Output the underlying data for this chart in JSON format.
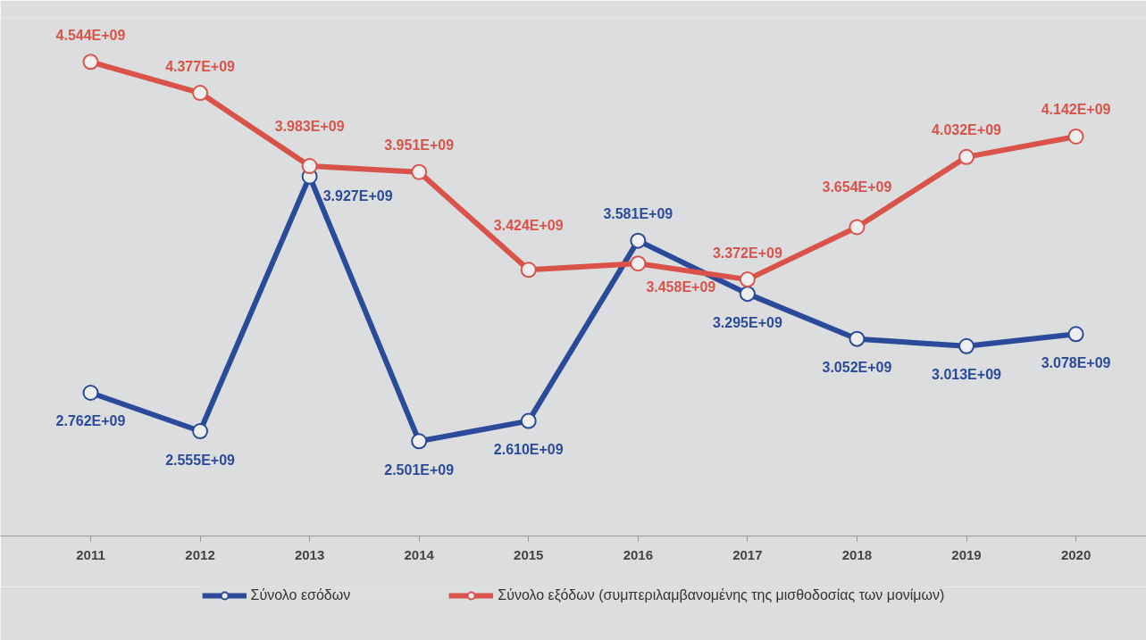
{
  "chart_data": {
    "type": "line",
    "categories": [
      "2011",
      "2012",
      "2013",
      "2014",
      "2015",
      "2016",
      "2017",
      "2018",
      "2019",
      "2020"
    ],
    "series": [
      {
        "name": "Σύνολο εσόδων",
        "color": "#2c4a9a",
        "values": [
          2762000000.0,
          2555000000.0,
          3927000000.0,
          2501000000.0,
          2610000000.0,
          3581000000.0,
          3295000000.0,
          3052000000.0,
          3013000000.0,
          3078000000.0
        ],
        "value_labels": [
          "2.762E+09",
          "2.555E+09",
          "3.927E+09",
          "2.501E+09",
          "2.610E+09",
          "3.581E+09",
          "3.295E+09",
          "3.052E+09",
          "3.013E+09",
          "3.078E+09"
        ]
      },
      {
        "name": "Σύνολο εξόδων (συμπεριλαμβανομένης της μισθοδοσίας των μονίμων)",
        "color": "#d9534a",
        "values": [
          4544000000.0,
          4377000000.0,
          3983000000.0,
          3951000000.0,
          3424000000.0,
          3458000000.0,
          3372000000.0,
          3654000000.0,
          4032000000.0,
          4142000000.0
        ],
        "value_labels": [
          "4.544E+09",
          "4.377E+09",
          "3.983E+09",
          "3.951E+09",
          "3.424E+09",
          "3.458E+09",
          "3.372E+09",
          "3.654E+09",
          "4.032E+09",
          "4.142E+09"
        ]
      }
    ],
    "marker": "circle",
    "line_style": "solid",
    "legend": "bottom",
    "grid": false,
    "tick_labels": "x"
  }
}
